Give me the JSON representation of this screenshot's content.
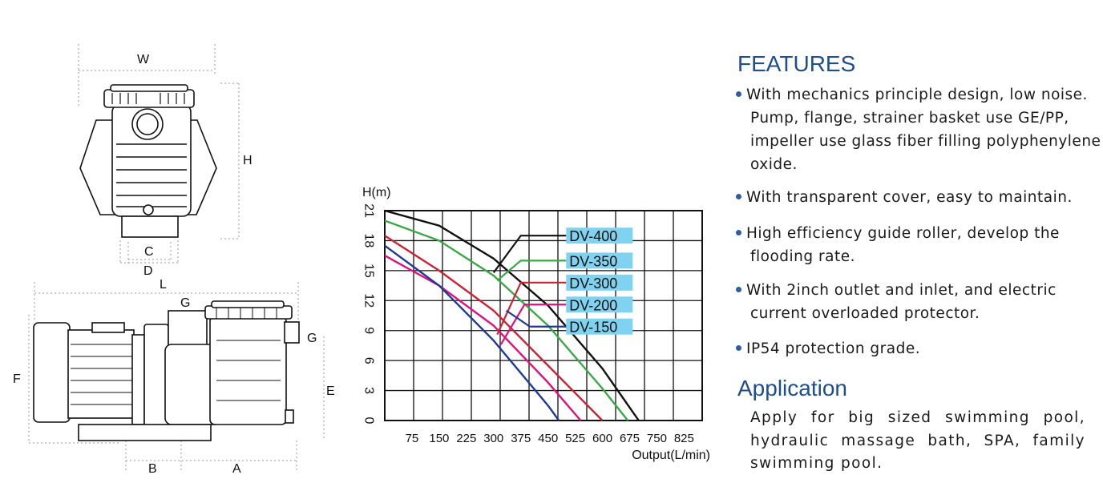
{
  "drawing_labels": {
    "W": "W",
    "H": "H",
    "C": "C",
    "D": "D",
    "L": "L",
    "G_top": "G",
    "G_side": "G",
    "F": "F",
    "E": "E",
    "B": "B",
    "A": "A"
  },
  "chart_data": {
    "type": "line",
    "ylabel": "H(m)",
    "xlabel": "Output(L/min)",
    "x_ticks": [
      "75",
      "150",
      "225",
      "300",
      "375",
      "450",
      "525",
      "600",
      "675",
      "750",
      "825"
    ],
    "y_ticks": [
      "0",
      "3",
      "6",
      "9",
      "12",
      "15",
      "18",
      "21"
    ],
    "xlim": [
      0,
      875
    ],
    "ylim": [
      0,
      21
    ],
    "grid": true,
    "series": [
      {
        "name": "DV-400",
        "color": "#111111",
        "x": [
          0,
          150,
          300,
          450,
          600,
          700
        ],
        "y": [
          21,
          19.5,
          16.2,
          11.5,
          5.2,
          0
        ]
      },
      {
        "name": "DV-350",
        "color": "#3aa845",
        "x": [
          0,
          150,
          300,
          450,
          600,
          670
        ],
        "y": [
          20,
          18,
          14.5,
          9.5,
          3.2,
          0
        ]
      },
      {
        "name": "DV-300",
        "color": "#cc2233",
        "x": [
          0,
          150,
          300,
          450,
          600
        ],
        "y": [
          18.5,
          15,
          11,
          5.5,
          0
        ]
      },
      {
        "name": "DV-200",
        "color": "#e0107a",
        "x": [
          0,
          150,
          300,
          450,
          540
        ],
        "y": [
          16.5,
          13.5,
          9.5,
          3.8,
          0
        ]
      },
      {
        "name": "DV-150",
        "color": "#1f3a93",
        "x": [
          0,
          150,
          300,
          450,
          480
        ],
        "y": [
          17.5,
          13.5,
          8,
          1.5,
          0
        ]
      }
    ],
    "legend_bg": "#7fd3f0"
  },
  "features": {
    "title": "FEATURES",
    "items": [
      "With mechanics principle design, low noise. Pump, flange, strainer basket use GE/PP, impeller use glass fiber filling polyphenylene oxide.",
      "With transparent cover, easy to maintain.",
      "High efficiency guide roller, develop the flooding rate.",
      "With 2inch outlet and inlet, and electric current overloaded protector.",
      "IP54 protection grade."
    ]
  },
  "application": {
    "title": "Application",
    "text": "Apply for big sized swimming pool, hydraulic massage bath, SPA, family swimming pool."
  },
  "colors": {
    "accent": "#1d4f8c",
    "bullet": "#2c5fa0"
  }
}
